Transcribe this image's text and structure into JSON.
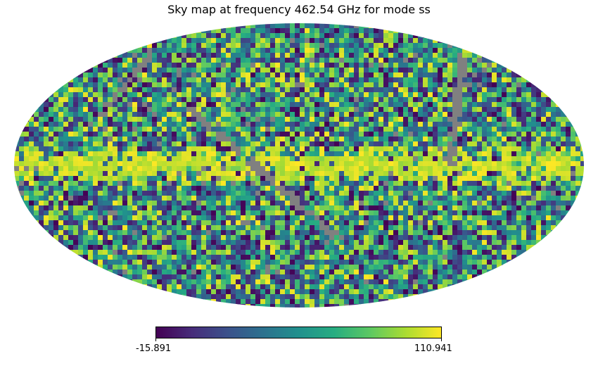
{
  "title": "Sky map at frequency 462.54 GHz for mode ss",
  "projection": "mollweide",
  "colormap": {
    "name": "viridis",
    "stops": [
      "#440154",
      "#472c7a",
      "#3b518b",
      "#2c718e",
      "#21908d",
      "#27ad81",
      "#5cc863",
      "#aadc32",
      "#fde725"
    ],
    "masked_color": "#808080"
  },
  "colorbar": {
    "min": -15.891,
    "max": 110.941,
    "min_label": "-15.891",
    "max_label": "110.941"
  },
  "features": {
    "galactic_plane": "bright horizontal band across the equator",
    "masked_regions": "grey diagonal scan-strip gaps"
  }
}
